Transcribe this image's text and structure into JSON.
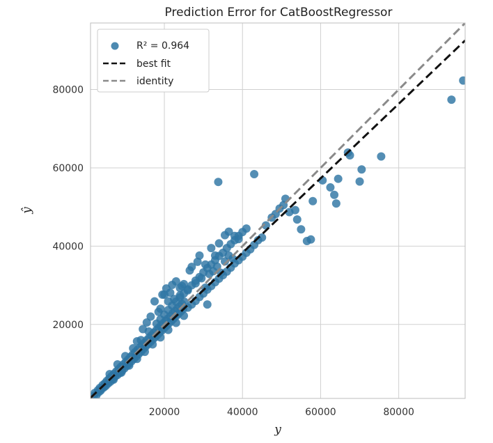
{
  "chart_data": {
    "type": "scatter",
    "title": "Prediction Error for CatBoostRegressor",
    "xlabel": "y",
    "ylabel": "ŷ",
    "xlim": [
      1100,
      97000
    ],
    "ylim": [
      1100,
      97000
    ],
    "xticks": [
      20000,
      40000,
      60000,
      80000
    ],
    "yticks": [
      20000,
      40000,
      60000,
      80000
    ],
    "xtick_labels": [
      "20000",
      "40000",
      "60000",
      "80000"
    ],
    "ytick_labels": [
      "20000",
      "40000",
      "60000",
      "80000"
    ],
    "grid": true,
    "legend_position": "top-left",
    "legend": {
      "r2_prefix": "R² = ",
      "r2_value": "0.964",
      "best_fit_label": "best fit",
      "identity_label": "identity"
    },
    "colors": {
      "points": "#2e75a3",
      "best_fit": "#111111",
      "identity": "#8a8a8a",
      "grid": "#d0d0d0",
      "frame": "#bdbdbd"
    },
    "best_fit": {
      "slope": 0.952,
      "intercept": 200
    },
    "identity": {
      "slope": 1.0,
      "intercept": 0
    },
    "points": [
      [
        1500,
        1400
      ],
      [
        2000,
        1800
      ],
      [
        2200,
        2500
      ],
      [
        2600,
        1900
      ],
      [
        3000,
        3200
      ],
      [
        3200,
        2700
      ],
      [
        3500,
        3800
      ],
      [
        3700,
        3100
      ],
      [
        4000,
        3600
      ],
      [
        4200,
        4500
      ],
      [
        4500,
        3900
      ],
      [
        4800,
        5000
      ],
      [
        5000,
        4300
      ],
      [
        5300,
        5600
      ],
      [
        5600,
        4900
      ],
      [
        5900,
        6200
      ],
      [
        6200,
        5400
      ],
      [
        6500,
        6800
      ],
      [
        6800,
        6000
      ],
      [
        7100,
        7400
      ],
      [
        7400,
        6700
      ],
      [
        7700,
        8000
      ],
      [
        8000,
        7100
      ],
      [
        8300,
        8600
      ],
      [
        8600,
        7600
      ],
      [
        8900,
        9200
      ],
      [
        9200,
        8200
      ],
      [
        9500,
        9800
      ],
      [
        9800,
        8800
      ],
      [
        10100,
        10400
      ],
      [
        10400,
        9400
      ],
      [
        10700,
        11000
      ],
      [
        11000,
        10000
      ],
      [
        11300,
        11700
      ],
      [
        11600,
        10600
      ],
      [
        11900,
        12300
      ],
      [
        12200,
        11200
      ],
      [
        12500,
        12900
      ],
      [
        12800,
        11800
      ],
      [
        13100,
        13500
      ],
      [
        13400,
        12400
      ],
      [
        13700,
        14100
      ],
      [
        14000,
        13000
      ],
      [
        14300,
        14700
      ],
      [
        14600,
        13700
      ],
      [
        14900,
        15300
      ],
      [
        15200,
        14300
      ],
      [
        15500,
        16000
      ],
      [
        15800,
        14900
      ],
      [
        16100,
        16600
      ],
      [
        16400,
        15500
      ],
      [
        16700,
        17200
      ],
      [
        17000,
        16100
      ],
      [
        17300,
        17900
      ],
      [
        17600,
        16700
      ],
      [
        17900,
        18500
      ],
      [
        18200,
        17300
      ],
      [
        18500,
        19100
      ],
      [
        18800,
        17900
      ],
      [
        19100,
        19700
      ],
      [
        19400,
        18500
      ],
      [
        19700,
        20300
      ],
      [
        20000,
        19100
      ],
      [
        20300,
        20900
      ],
      [
        20600,
        19700
      ],
      [
        20900,
        21500
      ],
      [
        21200,
        20300
      ],
      [
        21500,
        22100
      ],
      [
        21800,
        20900
      ],
      [
        22100,
        22800
      ],
      [
        22400,
        21500
      ],
      [
        22700,
        23400
      ],
      [
        23000,
        22100
      ],
      [
        23300,
        24000
      ],
      [
        23600,
        22700
      ],
      [
        23900,
        24600
      ],
      [
        24200,
        23300
      ],
      [
        24500,
        25200
      ],
      [
        24800,
        23900
      ],
      [
        25100,
        25800
      ],
      [
        6000,
        7300
      ],
      [
        8000,
        9800
      ],
      [
        10000,
        11900
      ],
      [
        12000,
        13900
      ],
      [
        14000,
        16000
      ],
      [
        16000,
        18200
      ],
      [
        18000,
        20200
      ],
      [
        19000,
        21300
      ],
      [
        20000,
        22500
      ],
      [
        21000,
        23700
      ],
      [
        22000,
        24800
      ],
      [
        23000,
        25800
      ],
      [
        24000,
        26900
      ],
      [
        25000,
        27900
      ],
      [
        26000,
        29000
      ],
      [
        27000,
        30000
      ],
      [
        28000,
        31200
      ],
      [
        29000,
        32100
      ],
      [
        30000,
        33300
      ],
      [
        31000,
        34400
      ],
      [
        32000,
        35300
      ],
      [
        33000,
        36400
      ],
      [
        34000,
        37500
      ],
      [
        35000,
        38300
      ],
      [
        36000,
        39500
      ],
      [
        37000,
        40500
      ],
      [
        38000,
        41500
      ],
      [
        39000,
        42600
      ],
      [
        40000,
        43600
      ],
      [
        41000,
        44500
      ],
      [
        7000,
        5900
      ],
      [
        9000,
        7700
      ],
      [
        11000,
        9500
      ],
      [
        13000,
        11200
      ],
      [
        15000,
        13000
      ],
      [
        17000,
        14900
      ],
      [
        19000,
        16700
      ],
      [
        21000,
        18600
      ],
      [
        23000,
        20400
      ],
      [
        25000,
        22200
      ],
      [
        26000,
        24300
      ],
      [
        27000,
        25100
      ],
      [
        28000,
        26000
      ],
      [
        29000,
        27000
      ],
      [
        30000,
        27900
      ],
      [
        31000,
        28900
      ],
      [
        32000,
        29800
      ],
      [
        33000,
        30800
      ],
      [
        34000,
        31700
      ],
      [
        35000,
        32600
      ],
      [
        36000,
        33500
      ],
      [
        37000,
        34500
      ],
      [
        38000,
        35600
      ],
      [
        39000,
        36400
      ],
      [
        40000,
        37300
      ],
      [
        41000,
        38300
      ],
      [
        42000,
        39200
      ],
      [
        43000,
        40300
      ],
      [
        44000,
        41500
      ],
      [
        45000,
        42200
      ],
      [
        28000,
        30500
      ],
      [
        29500,
        31800
      ],
      [
        30500,
        29400
      ],
      [
        31500,
        32900
      ],
      [
        32500,
        33600
      ],
      [
        33500,
        34800
      ],
      [
        34500,
        33200
      ],
      [
        35500,
        36100
      ],
      [
        36500,
        37600
      ],
      [
        37500,
        36800
      ],
      [
        26500,
        33800
      ],
      [
        28500,
        36000
      ],
      [
        30500,
        35300
      ],
      [
        32000,
        39500
      ],
      [
        33000,
        37600
      ],
      [
        34000,
        40700
      ],
      [
        35500,
        42800
      ],
      [
        36500,
        43700
      ],
      [
        38000,
        42600
      ],
      [
        39000,
        41800
      ],
      [
        25000,
        30300
      ],
      [
        27000,
        34700
      ],
      [
        29000,
        37600
      ],
      [
        24000,
        29300
      ],
      [
        23000,
        31000
      ],
      [
        26000,
        28700
      ],
      [
        22000,
        30100
      ],
      [
        21000,
        25900
      ],
      [
        20500,
        29200
      ],
      [
        19500,
        27600
      ],
      [
        17500,
        25900
      ],
      [
        20000,
        27600
      ],
      [
        21500,
        28100
      ],
      [
        22500,
        26500
      ],
      [
        24500,
        29800
      ],
      [
        19000,
        24000
      ],
      [
        18500,
        23200
      ],
      [
        16500,
        22000
      ],
      [
        15500,
        20500
      ],
      [
        14500,
        18800
      ],
      [
        46000,
        45300
      ],
      [
        47500,
        47300
      ],
      [
        48500,
        48200
      ],
      [
        49500,
        49600
      ],
      [
        50500,
        50500
      ],
      [
        51000,
        52100
      ],
      [
        52000,
        48700
      ],
      [
        53500,
        49200
      ],
      [
        54000,
        46800
      ],
      [
        55000,
        44300
      ],
      [
        56500,
        41300
      ],
      [
        57500,
        41700
      ],
      [
        58000,
        51500
      ],
      [
        60500,
        56800
      ],
      [
        62500,
        55000
      ],
      [
        63500,
        53100
      ],
      [
        64000,
        50900
      ],
      [
        64500,
        57200
      ],
      [
        67000,
        63900
      ],
      [
        67500,
        63200
      ],
      [
        70000,
        56500
      ],
      [
        70500,
        59600
      ],
      [
        75500,
        62900
      ],
      [
        93500,
        77400
      ],
      [
        96500,
        82300
      ],
      [
        33800,
        56400
      ],
      [
        43000,
        58400
      ],
      [
        13000,
        15700
      ],
      [
        24000,
        27400
      ],
      [
        31000,
        25100
      ]
    ]
  }
}
